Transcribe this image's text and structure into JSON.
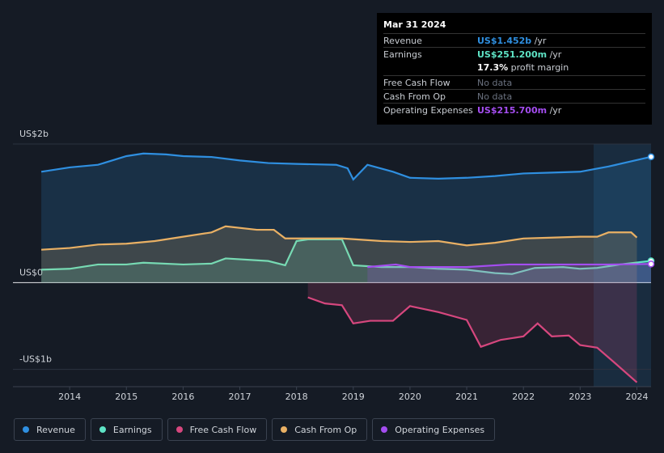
{
  "chart_data": {
    "type": "line",
    "xlim": [
      2013,
      2024.25
    ],
    "xticks": [
      2014,
      2015,
      2016,
      2017,
      2018,
      2019,
      2020,
      2021,
      2022,
      2023,
      2024
    ],
    "ylim": [
      -1.2,
      1.6
    ],
    "yticks": [
      {
        "value": -1,
        "label": "-US$1b"
      },
      {
        "value": 0,
        "label": "US$0"
      },
      {
        "value": 1.6,
        "label": "US$2b"
      }
    ],
    "series": [
      {
        "name": "Revenue",
        "color": "#2f8fe0",
        "x": [
          2013.5,
          2014,
          2014.5,
          2015,
          2015.3,
          2015.7,
          2016,
          2016.5,
          2017,
          2017.5,
          2018,
          2018.7,
          2018.9,
          2019,
          2019.25,
          2019.7,
          2020,
          2020.5,
          2021,
          2021.5,
          2022,
          2022.5,
          2023,
          2023.5,
          2024.25
        ],
        "values": [
          1.28,
          1.33,
          1.36,
          1.46,
          1.49,
          1.48,
          1.46,
          1.45,
          1.41,
          1.38,
          1.37,
          1.36,
          1.32,
          1.19,
          1.36,
          1.28,
          1.21,
          1.2,
          1.21,
          1.23,
          1.26,
          1.27,
          1.28,
          1.34,
          1.452
        ]
      },
      {
        "name": "Earnings",
        "color": "#5ee3c5",
        "x": [
          2013.5,
          2014,
          2014.5,
          2015,
          2015.3,
          2016,
          2016.5,
          2016.75,
          2017.5,
          2017.8,
          2018,
          2018.2,
          2018.8,
          2019,
          2019.5,
          2020,
          2020.5,
          2021,
          2021.5,
          2021.8,
          2022.2,
          2022.7,
          2023,
          2023.3,
          2023.7,
          2024.25
        ],
        "values": [
          0.15,
          0.16,
          0.21,
          0.21,
          0.23,
          0.21,
          0.22,
          0.28,
          0.25,
          0.2,
          0.48,
          0.5,
          0.5,
          0.2,
          0.18,
          0.18,
          0.16,
          0.15,
          0.11,
          0.1,
          0.17,
          0.18,
          0.16,
          0.17,
          0.21,
          0.2512
        ]
      },
      {
        "name": "Free Cash Flow",
        "color": "#d6477e",
        "x": [
          2018.2,
          2018.5,
          2018.8,
          2019,
          2019.3,
          2019.7,
          2020,
          2020.5,
          2021,
          2021.25,
          2021.6,
          2022,
          2022.25,
          2022.5,
          2022.8,
          2023,
          2023.3,
          2023.6,
          2024
        ],
        "values": [
          -0.17,
          -0.24,
          -0.26,
          -0.47,
          -0.44,
          -0.44,
          -0.27,
          -0.34,
          -0.43,
          -0.74,
          -0.66,
          -0.62,
          -0.47,
          -0.62,
          -0.61,
          -0.72,
          -0.75,
          -0.92,
          -1.15
        ]
      },
      {
        "name": "Cash From Op",
        "color": "#e9b064",
        "x": [
          2013.5,
          2014,
          2014.5,
          2015,
          2015.5,
          2016,
          2016.5,
          2016.75,
          2017.3,
          2017.6,
          2017.8,
          2018.2,
          2018.8,
          2019.5,
          2020,
          2020.5,
          2021,
          2021.5,
          2022,
          2022.5,
          2023,
          2023.3,
          2023.5,
          2023.9,
          2024
        ],
        "values": [
          0.38,
          0.4,
          0.44,
          0.45,
          0.48,
          0.53,
          0.58,
          0.65,
          0.61,
          0.61,
          0.51,
          0.51,
          0.51,
          0.48,
          0.47,
          0.48,
          0.43,
          0.46,
          0.51,
          0.52,
          0.53,
          0.53,
          0.58,
          0.58,
          0.52
        ]
      },
      {
        "name": "Operating Expenses",
        "color": "#a44df0",
        "x": [
          2019.25,
          2019.75,
          2020,
          2021,
          2021.75,
          2022.5,
          2023.5,
          2024.25
        ],
        "values": [
          0.18,
          0.21,
          0.18,
          0.18,
          0.21,
          0.21,
          0.21,
          0.2157
        ]
      }
    ]
  },
  "tooltip": {
    "date": "Mar 31 2024",
    "rows": [
      {
        "label": "Revenue",
        "value": "US$1.452b",
        "suffix": "/yr",
        "color": "#2f8fe0"
      },
      {
        "label": "Earnings",
        "value": "US$251.200m",
        "suffix": "/yr",
        "color": "#5ee3c5"
      },
      {
        "label": "",
        "value": "17.3%",
        "suffix": "profit margin",
        "color": "#ffffff"
      },
      {
        "label": "Free Cash Flow",
        "value": "No data",
        "color": "#6b7280"
      },
      {
        "label": "Cash From Op",
        "value": "No data",
        "color": "#6b7280"
      },
      {
        "label": "Operating Expenses",
        "value": "US$215.700m",
        "suffix": "/yr",
        "color": "#a44df0"
      }
    ]
  }
}
